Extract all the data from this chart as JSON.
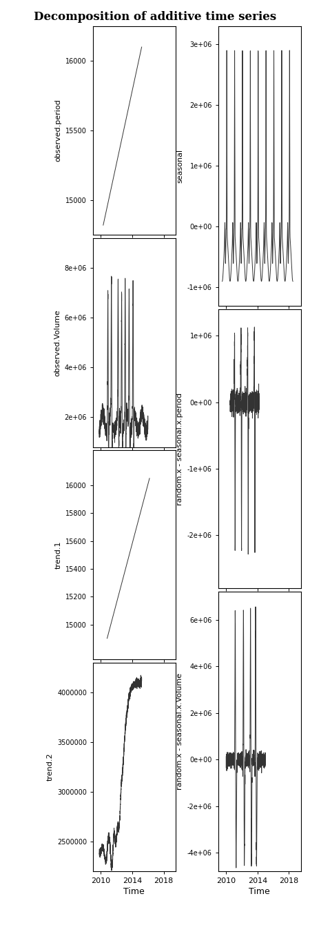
{
  "title": "Decomposition of additive time series",
  "left_panels": [
    {
      "ylabel": "observed.period",
      "ylim": [
        14750,
        16250
      ],
      "yticks": [
        15000,
        15500,
        16000
      ],
      "ytick_labels": [
        "15000",
        "15500",
        "16000"
      ]
    },
    {
      "ylabel": "observed.Volume",
      "ylim": [
        800000,
        9200000
      ],
      "yticks": [
        2000000,
        4000000,
        6000000,
        8000000
      ],
      "ytick_labels": [
        "2e+06",
        "4e+06",
        "6e+06",
        "8e+06"
      ]
    },
    {
      "ylabel": "trend.1",
      "ylim": [
        14750,
        16250
      ],
      "yticks": [
        15000,
        15200,
        15400,
        15600,
        15800,
        16000
      ],
      "ytick_labels": [
        "15000",
        "15200",
        "15400",
        "15600",
        "15800",
        "16000"
      ]
    },
    {
      "ylabel": "trend.2",
      "ylim": [
        2200000,
        4300000
      ],
      "yticks": [
        2500000,
        3000000,
        3500000,
        4000000
      ],
      "ytick_labels": [
        "2500000",
        "3000000",
        "3500000",
        "4000000"
      ]
    }
  ],
  "right_panels": [
    {
      "ylabel": "seasonal",
      "ylim": [
        -1300000,
        3300000
      ],
      "yticks": [
        -1000000,
        0,
        1000000,
        2000000,
        3000000
      ],
      "ytick_labels": [
        "-1e+06",
        "0e+00",
        "1e+06",
        "2e+06",
        "3e+06"
      ]
    },
    {
      "ylabel": "random.x - seasonal.x.period",
      "ylim": [
        -2800000,
        1400000
      ],
      "yticks": [
        -2000000,
        -1000000,
        0,
        1000000
      ],
      "ytick_labels": [
        "-2e+06",
        "-1e+06",
        "0e+00",
        "1e+06"
      ]
    },
    {
      "ylabel": "random.x - seasonal.x.Volume",
      "ylim": [
        -4800000,
        7200000
      ],
      "yticks": [
        -4000000,
        -2000000,
        0,
        2000000,
        4000000,
        6000000
      ],
      "ytick_labels": [
        "-4e+06",
        "-2e+06",
        "0e+00",
        "2e+06",
        "4e+06",
        "6e+06"
      ]
    }
  ],
  "xticks": [
    2010,
    2014,
    2018
  ],
  "xlabel": "Time",
  "background": "#ffffff",
  "line_color": "#333333"
}
